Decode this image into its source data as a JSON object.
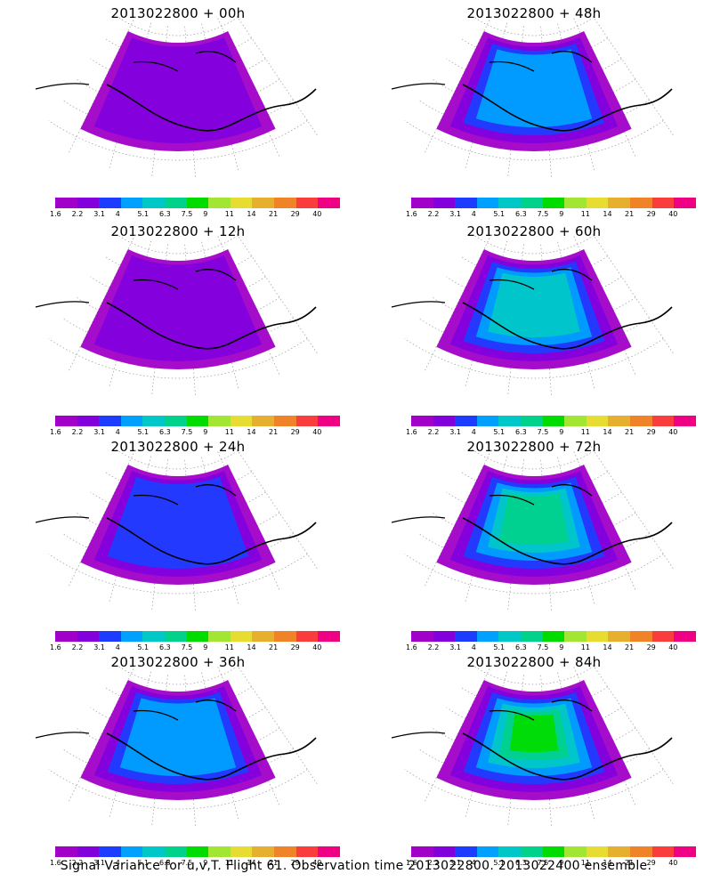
{
  "panels": [
    {
      "title": "2013022800 + 00h",
      "level": 1
    },
    {
      "title": "2013022800 + 48h",
      "level": 3
    },
    {
      "title": "2013022800 + 12h",
      "level": 1
    },
    {
      "title": "2013022800 + 60h",
      "level": 4
    },
    {
      "title": "2013022800 + 24h",
      "level": 2
    },
    {
      "title": "2013022800 + 72h",
      "level": 5
    },
    {
      "title": "2013022800 + 36h",
      "level": 3
    },
    {
      "title": "2013022800 + 84h",
      "level": 6
    }
  ],
  "colorbar": {
    "labels": [
      "1.6",
      "2.2",
      "3.1",
      "4",
      "5.1",
      "6.3",
      "7.5",
      "9",
      "11",
      "14",
      "21",
      "29",
      "40"
    ],
    "colors": [
      "#a000c8",
      "#8200dc",
      "#1e3cff",
      "#00a0ff",
      "#00c8c8",
      "#00d28c",
      "#00dc00",
      "#a0e632",
      "#e6dc32",
      "#e6af2d",
      "#f08228",
      "#fa3c3c",
      "#f00082"
    ]
  },
  "caption": "Signal Variance for u,v,T. Flight 61. Observation time 2013022800. 2013022400 ensemble."
}
